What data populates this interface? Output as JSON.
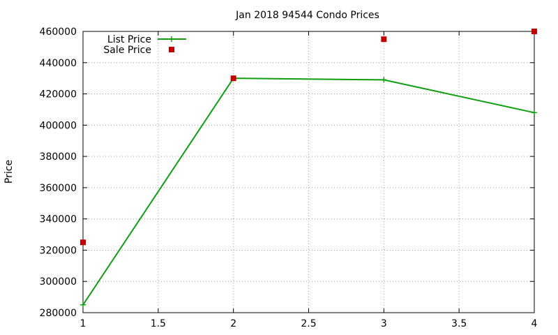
{
  "chart_data": {
    "type": "line",
    "title": "Jan 2018 94544 Condo Prices",
    "xlabel": "",
    "ylabel": "Price",
    "xlim": [
      1,
      4
    ],
    "ylim": [
      280000,
      460000
    ],
    "x_ticks": [
      "1",
      "1.5",
      "2",
      "2.5",
      "3",
      "3.5",
      "4"
    ],
    "y_ticks": [
      "280000",
      "300000",
      "320000",
      "340000",
      "360000",
      "380000",
      "400000",
      "420000",
      "440000",
      "460000"
    ],
    "grid": true,
    "legend_position": "top-left",
    "series": [
      {
        "name": "List Price",
        "style": "lines+points",
        "color": "#109e10",
        "x": [
          1,
          2,
          3,
          4
        ],
        "y": [
          285000,
          430000,
          429000,
          408000
        ]
      },
      {
        "name": "Sale Price",
        "style": "points",
        "color": "#c00000",
        "x": [
          1,
          2,
          3,
          4
        ],
        "y": [
          325000,
          430000,
          455000,
          460000
        ]
      }
    ]
  }
}
